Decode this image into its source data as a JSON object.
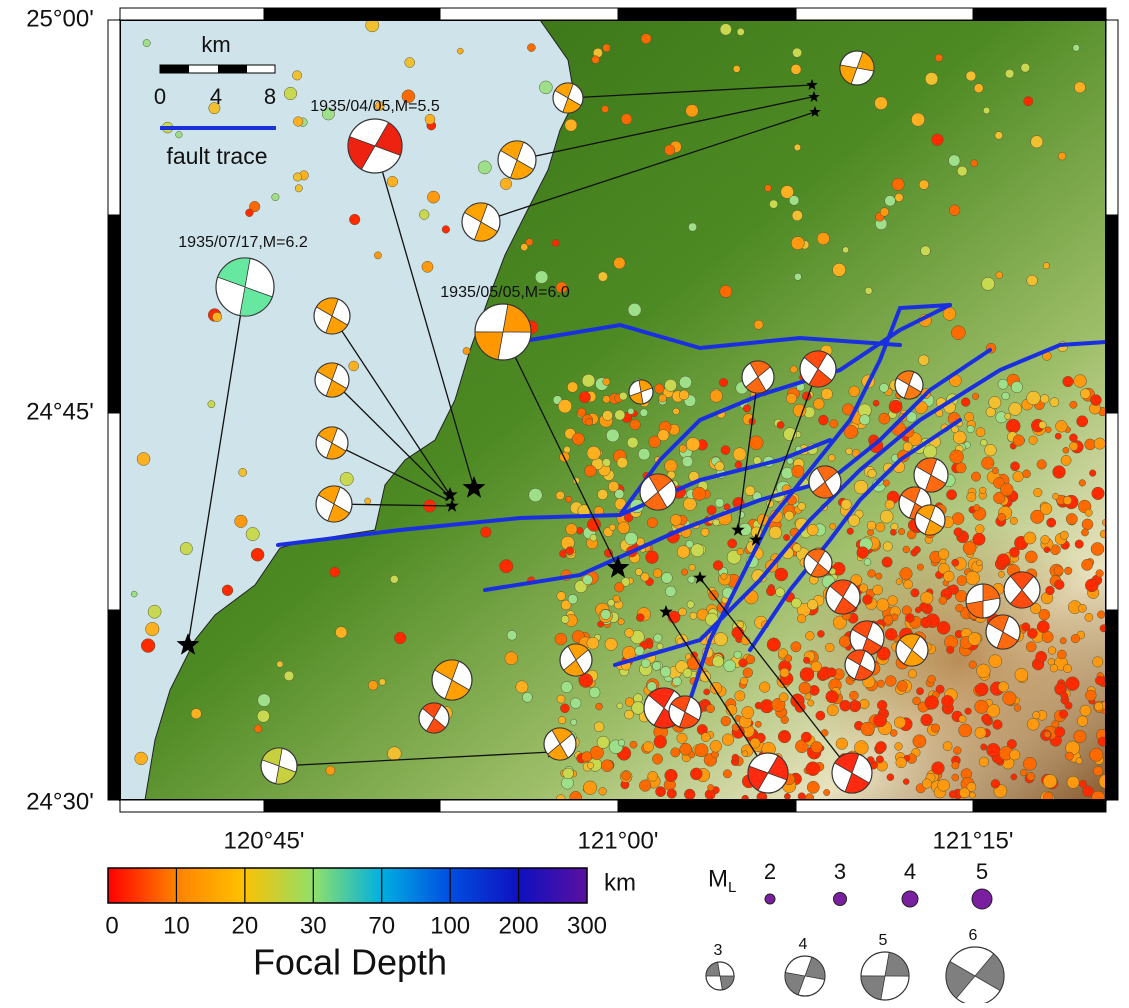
{
  "map": {
    "lat_labels": [
      "25°00'",
      "24°45'",
      "24°30'"
    ],
    "lon_labels": [
      "120°45'",
      "121°00'",
      "121°15'"
    ],
    "scale_bar": {
      "title": "km",
      "ticks": [
        "0",
        "4",
        "8"
      ]
    },
    "fault_legend": "fault trace",
    "events": [
      {
        "label": "1935/04/05,M=5.5"
      },
      {
        "label": "1935/07/17,M=6.2"
      },
      {
        "label": "1935/05/05,M=6.0"
      }
    ]
  },
  "colorbar": {
    "unit": "km",
    "ticks": [
      "0",
      "10",
      "20",
      "30",
      "70",
      "100",
      "200",
      "300"
    ],
    "title": "Focal Depth"
  },
  "magnitude_legend": {
    "symbol": "M",
    "subscript": "L",
    "sizes": [
      "2",
      "3",
      "4",
      "5"
    ]
  },
  "mechanism_legend": {
    "sizes": [
      "3",
      "4",
      "5",
      "6"
    ]
  }
}
